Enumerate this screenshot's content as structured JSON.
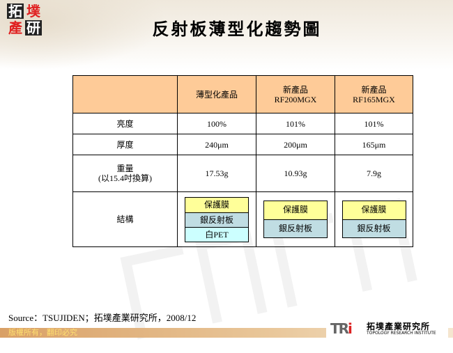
{
  "logo": {
    "chars": [
      "拓",
      "墣",
      "產",
      "研"
    ],
    "colors": {
      "dark": "#222222",
      "red": "#e02020"
    }
  },
  "title": "反射板薄型化趨勢圖",
  "table": {
    "headers": [
      "",
      "薄型化產品",
      "新產品\nRF200MGX",
      "新產品\nRF165MGX"
    ],
    "rows": [
      {
        "label": "亮度",
        "values": [
          "100%",
          "101%",
          "101%"
        ]
      },
      {
        "label": "厚度",
        "values": [
          "240μm",
          "200μm",
          "165μm"
        ]
      },
      {
        "label": "重量",
        "sublabel": "(以15.4吋換算)",
        "values": [
          "17.53g",
          "10.93g",
          "7.9g"
        ]
      }
    ],
    "structure": {
      "label": "結構",
      "stacks": [
        [
          "保護膜",
          "銀反射板",
          "白PET"
        ],
        [
          "保護膜",
          "銀反射板"
        ],
        [
          "保護膜",
          "銀反射板"
        ]
      ]
    },
    "colors": {
      "header": "#fecb98",
      "protect": "#ffff99",
      "silver": "#c0dde3",
      "pet": "#ccffff"
    }
  },
  "source": "Source：TSUJIDEN；拓墣產業研究所，2008/12",
  "footer": {
    "copyright": "版權所有，翻印必究"
  },
  "brand": {
    "mark": "TRi",
    "name_cn": "拓墣產業研究所",
    "name_en": "TOPOLOGY RESEARCH INSTITUTE"
  }
}
